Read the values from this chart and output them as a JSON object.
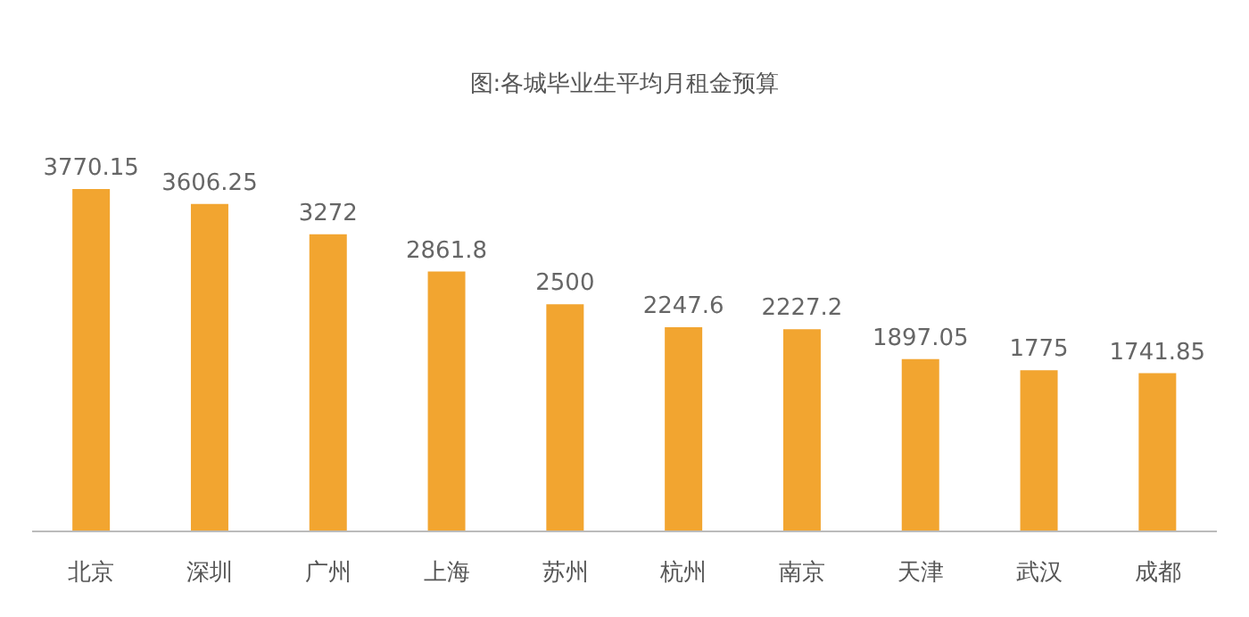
{
  "chart_data": {
    "type": "bar",
    "title": "图:各城毕业生平均月租金预算",
    "categories": [
      "北京",
      "深圳",
      "广州",
      "上海",
      "苏州",
      "杭州",
      "南京",
      "天津",
      "武汉",
      "成都"
    ],
    "values": [
      3770.15,
      3606.25,
      3272,
      2861.8,
      2500,
      2247.6,
      2227.2,
      1897.05,
      1775,
      1741.85
    ],
    "color": "#f2a530",
    "data_labels": true
  }
}
